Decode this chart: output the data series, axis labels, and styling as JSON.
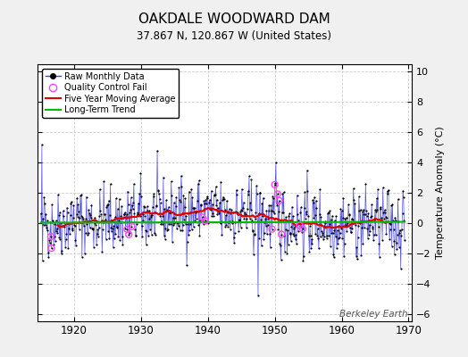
{
  "title": "OAKDALE WOODWARD DAM",
  "subtitle": "37.867 N, 120.867 W (United States)",
  "ylabel": "Temperature Anomaly (°C)",
  "watermark": "Berkeley Earth",
  "xlim": [
    1914.5,
    1970.5
  ],
  "ylim": [
    -6.5,
    10.5
  ],
  "yticks": [
    -6,
    -4,
    -2,
    0,
    2,
    4,
    6,
    8,
    10
  ],
  "xticks": [
    1920,
    1930,
    1940,
    1950,
    1960,
    1970
  ],
  "bg_color": "#f0f0f0",
  "plot_bg_color": "#ffffff",
  "raw_line_color": "#4444dd",
  "raw_dot_color": "#000000",
  "ma_color": "#dd0000",
  "trend_color": "#00bb00",
  "qc_color": "#ff44ff",
  "seed": 42,
  "n_months": 654,
  "start_year": 1915,
  "start_month": 1,
  "qc_fail_indices": [
    18,
    19,
    155,
    158,
    163,
    290,
    295,
    415,
    420,
    425,
    428,
    432,
    465,
    470
  ]
}
